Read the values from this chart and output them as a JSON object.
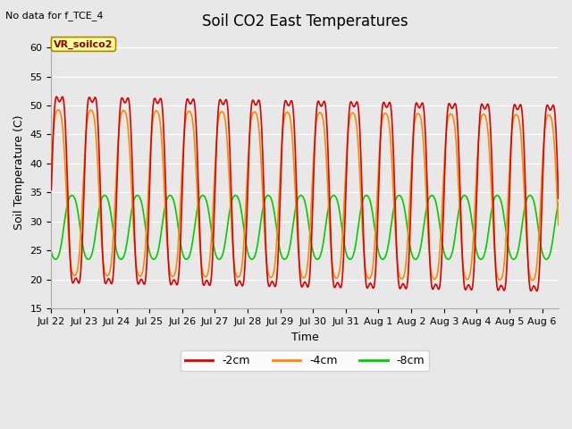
{
  "title": "Soil CO2 East Temperatures",
  "xlabel": "Time",
  "ylabel": "Soil Temperature (C)",
  "top_left_note": "No data for f_TCE_4",
  "annotation_box": "VR_soilco2",
  "ylim": [
    15,
    62
  ],
  "yticks": [
    15,
    20,
    25,
    30,
    35,
    40,
    45,
    50,
    55,
    60
  ],
  "xlim": [
    0,
    15.5
  ],
  "x_tick_positions": [
    0,
    1,
    2,
    3,
    4,
    5,
    6,
    7,
    8,
    9,
    10,
    11,
    12,
    13,
    14,
    15
  ],
  "x_tick_labels": [
    "Jul 22",
    "Jul 23",
    "Jul 24",
    "Jul 25",
    "Jul 26",
    "Jul 27",
    "Jul 28",
    "Jul 29",
    "Jul 30",
    "Jul 31",
    "Aug 1",
    "Aug 2",
    "Aug 3",
    "Aug 4",
    "Aug 5",
    "Aug 6"
  ],
  "colors": {
    "2cm": "#dd0000",
    "4cm": "#ff8800",
    "8cm": "#00cc00"
  },
  "legend_labels": [
    "-2cm",
    "-4cm",
    "-8cm"
  ],
  "bg_color": "#e8e8e8",
  "fig_bg_color": "#e8e8e8",
  "grid_color": "#ffffff",
  "amp_2cm": 18.5,
  "mean_2cm": 35.5,
  "phase_2cm": 0.0,
  "amp_4cm": 15.5,
  "mean_4cm": 35.0,
  "phase_4cm": 0.04,
  "amp_8cm": 5.8,
  "mean_8cm": 29.0,
  "phase_8cm_lag": 0.38,
  "n_points": 3000,
  "t_end": 15.5,
  "title_fontsize": 12,
  "tick_fontsize": 8,
  "axis_label_fontsize": 9,
  "legend_fontsize": 9
}
